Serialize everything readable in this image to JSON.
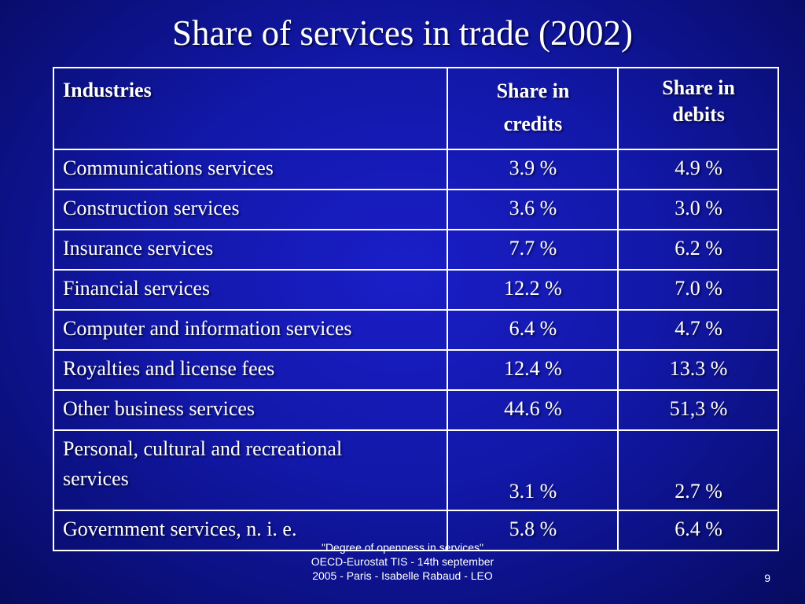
{
  "slide": {
    "title": "Share of  services in trade (2002)",
    "footer_line1": "\"Degree of openness in services\"",
    "footer_line2": "OECD-Eurostat  TIS - 14th september",
    "footer_line3": "2005 - Paris - Isabelle Rabaud  - LEO",
    "page_number": "9"
  },
  "table": {
    "headers": {
      "industries": "Industries",
      "credits_line1": "Share in",
      "credits_line2": "credits",
      "debits_line1": "Share in",
      "debits_line2": "debits"
    },
    "rows": [
      {
        "industry": "Communications services",
        "credits": "3.9 %",
        "debits": "4.9 %"
      },
      {
        "industry": "Construction services",
        "credits": "3.6 %",
        "debits": "3.0 %"
      },
      {
        "industry": "Insurance services",
        "credits": "7.7 %",
        "debits": "6.2 %"
      },
      {
        "industry": "Financial services",
        "credits": "12.2 %",
        "debits": "7.0 %"
      },
      {
        "industry": "Computer and information services",
        "credits": "6.4 %",
        "debits": "4.7 %"
      },
      {
        "industry": "Royalties and license fees",
        "credits": "12.4 %",
        "debits": "13.3 %"
      },
      {
        "industry": "Other business services",
        "credits": "44.6 %",
        "debits": "51,3 %"
      },
      {
        "industry_line1": "Personal, cultural and recreational",
        "industry_line2": "services",
        "credits": "3.1 %",
        "debits": "2.7 %"
      },
      {
        "industry": "Government services, n. i. e.",
        "credits": "5.8 %",
        "debits": "6.4 %"
      }
    ]
  },
  "colors": {
    "background": "#1218a8",
    "text": "#ffffff",
    "grid": "#ffffff"
  }
}
